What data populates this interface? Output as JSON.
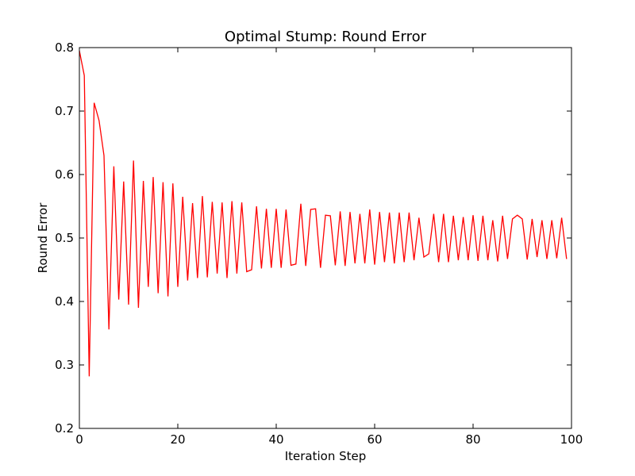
{
  "chart_data": {
    "type": "line",
    "title": "Optimal Stump: Round Error",
    "xlabel": "Iteration Step",
    "ylabel": "Round Error",
    "xlim": [
      0,
      100
    ],
    "ylim": [
      0.2,
      0.8
    ],
    "xticks": [
      "0",
      "20",
      "40",
      "60",
      "80",
      "100"
    ],
    "yticks": [
      "0.2",
      "0.3",
      "0.4",
      "0.5",
      "0.6",
      "0.7",
      "0.8"
    ],
    "grid": false,
    "series": [
      {
        "color": "#ff0000",
        "x": [
          0,
          1,
          2,
          3,
          4,
          5,
          6,
          7,
          8,
          9,
          10,
          11,
          12,
          13,
          14,
          15,
          16,
          17,
          18,
          19,
          20,
          21,
          22,
          23,
          24,
          25,
          26,
          27,
          28,
          29,
          30,
          31,
          32,
          33,
          34,
          35,
          36,
          37,
          38,
          39,
          40,
          41,
          42,
          43,
          44,
          45,
          46,
          47,
          48,
          49,
          50,
          51,
          52,
          53,
          54,
          55,
          56,
          57,
          58,
          59,
          60,
          61,
          62,
          63,
          64,
          65,
          66,
          67,
          68,
          69,
          70,
          71,
          72,
          73,
          74,
          75,
          76,
          77,
          78,
          79,
          80,
          81,
          82,
          83,
          84,
          85,
          86,
          87,
          88,
          89,
          90,
          91,
          92,
          93,
          94,
          95,
          96,
          97,
          98,
          99
        ],
        "y": [
          0.795,
          0.756,
          0.282,
          0.713,
          0.685,
          0.63,
          0.356,
          0.613,
          0.403,
          0.589,
          0.395,
          0.622,
          0.39,
          0.59,
          0.423,
          0.596,
          0.413,
          0.588,
          0.408,
          0.586,
          0.423,
          0.565,
          0.433,
          0.555,
          0.437,
          0.566,
          0.438,
          0.557,
          0.444,
          0.556,
          0.437,
          0.558,
          0.444,
          0.556,
          0.447,
          0.45,
          0.55,
          0.452,
          0.546,
          0.453,
          0.546,
          0.453,
          0.545,
          0.457,
          0.459,
          0.554,
          0.456,
          0.545,
          0.546,
          0.453,
          0.536,
          0.535,
          0.457,
          0.542,
          0.456,
          0.541,
          0.46,
          0.538,
          0.46,
          0.545,
          0.458,
          0.541,
          0.462,
          0.54,
          0.46,
          0.54,
          0.462,
          0.54,
          0.465,
          0.532,
          0.47,
          0.475,
          0.538,
          0.462,
          0.538,
          0.462,
          0.535,
          0.465,
          0.533,
          0.465,
          0.536,
          0.464,
          0.535,
          0.465,
          0.528,
          0.463,
          0.535,
          0.467,
          0.53,
          0.536,
          0.53,
          0.466,
          0.53,
          0.47,
          0.528,
          0.467,
          0.528,
          0.468,
          0.532,
          0.467
        ]
      }
    ]
  }
}
